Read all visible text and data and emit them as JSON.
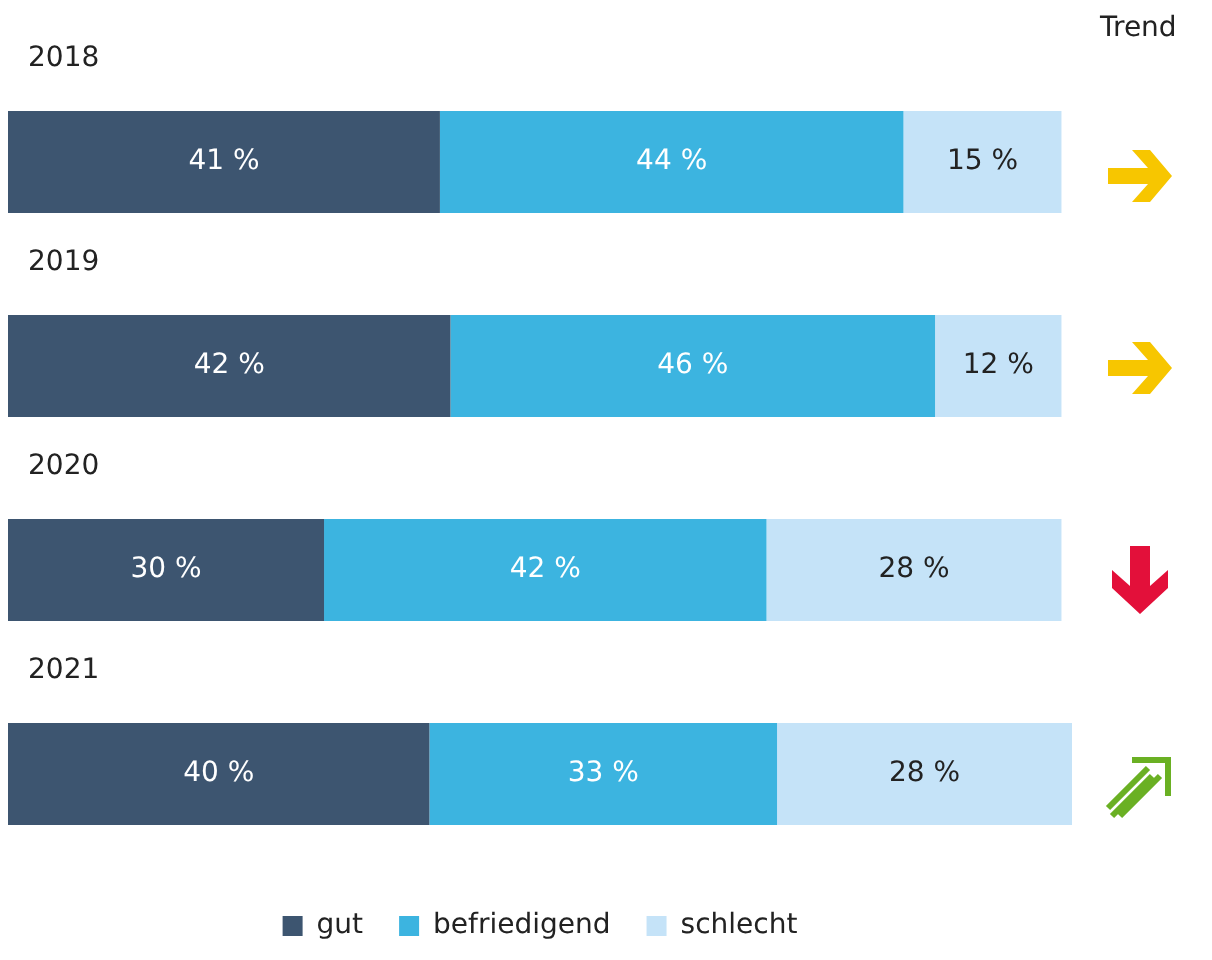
{
  "chart_data": {
    "type": "bar",
    "orientation": "horizontal",
    "stacked": true,
    "legend": "bottom",
    "annotations": [
      "Trend"
    ],
    "categories": [
      "2018",
      "2019",
      "2020",
      "2021"
    ],
    "series": [
      {
        "name": "gut",
        "color": "#3d5570",
        "values": [
          41,
          42,
          30,
          40
        ],
        "value_labels": [
          "41 %",
          "42 %",
          "30 %",
          "40 %"
        ]
      },
      {
        "name": "befriedigend",
        "color": "#3cb4e0",
        "values": [
          44,
          46,
          42,
          33
        ],
        "value_labels": [
          "44 %",
          "46 %",
          "42 %",
          "33 %"
        ]
      },
      {
        "name": "schlecht",
        "color": "#c5e3f8",
        "values": [
          15,
          12,
          28,
          28
        ],
        "value_labels": [
          "15 %",
          "12 %",
          "28 %",
          "28 %"
        ]
      }
    ]
  }
}
